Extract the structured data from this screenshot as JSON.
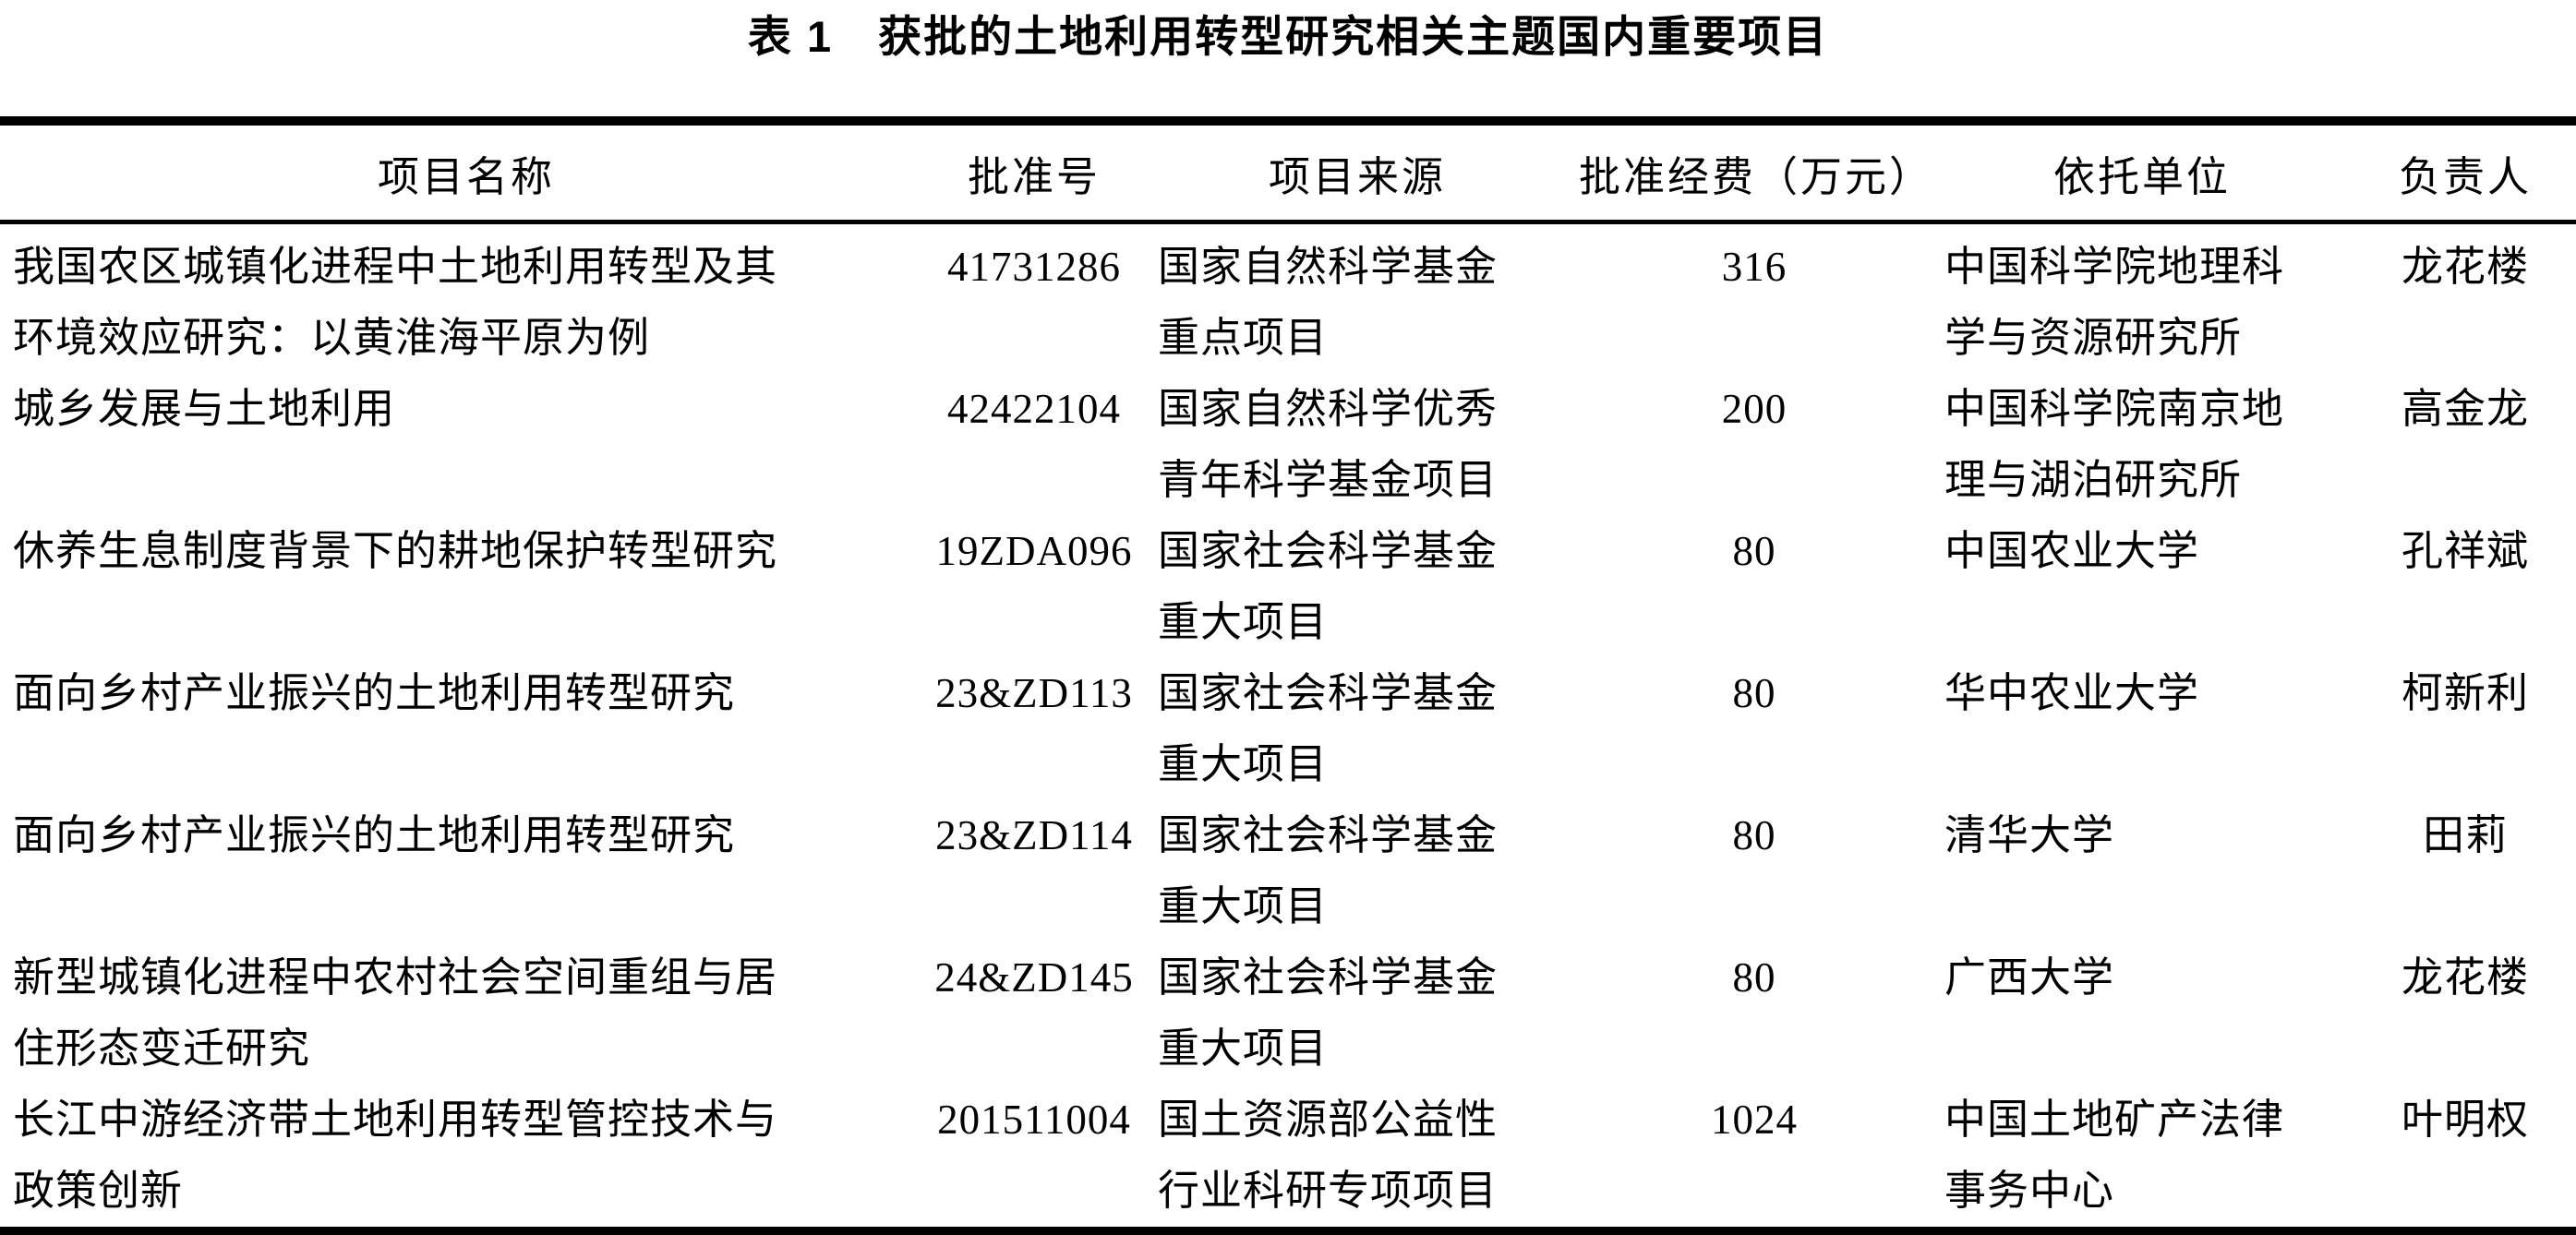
{
  "caption": "表 1　获批的土地利用转型研究相关主题国内重要项目",
  "table": {
    "columns": [
      {
        "label": "项目名称",
        "align": "left"
      },
      {
        "label": "批准号",
        "align": "center"
      },
      {
        "label": "项目来源",
        "align": "left"
      },
      {
        "label": "批准经费（万元）",
        "align": "center"
      },
      {
        "label": "依托单位",
        "align": "left"
      },
      {
        "label": "负责人",
        "align": "center"
      }
    ],
    "rows": [
      {
        "project_name": "我国农区城镇化进程中土地利用转型及其\n环境效应研究：以黄淮海平原为例",
        "approval_no": "41731286",
        "source": "国家自然科学基金\n重点项目",
        "funding_wan_yuan": "316",
        "institution": "中国科学院地理科\n学与资源研究所",
        "leader": "龙花楼"
      },
      {
        "project_name": "城乡发展与土地利用",
        "approval_no": "42422104",
        "source": "国家自然科学优秀\n青年科学基金项目",
        "funding_wan_yuan": "200",
        "institution": "中国科学院南京地\n理与湖泊研究所",
        "leader": "高金龙"
      },
      {
        "project_name": "休养生息制度背景下的耕地保护转型研究",
        "approval_no": "19ZDA096",
        "source": "国家社会科学基金\n重大项目",
        "funding_wan_yuan": "80",
        "institution": "中国农业大学",
        "leader": "孔祥斌"
      },
      {
        "project_name": "面向乡村产业振兴的土地利用转型研究",
        "approval_no": "23&ZD113",
        "source": "国家社会科学基金\n重大项目",
        "funding_wan_yuan": "80",
        "institution": "华中农业大学",
        "leader": "柯新利"
      },
      {
        "project_name": "面向乡村产业振兴的土地利用转型研究",
        "approval_no": "23&ZD114",
        "source": "国家社会科学基金\n重大项目",
        "funding_wan_yuan": "80",
        "institution": "清华大学",
        "leader": "田莉"
      },
      {
        "project_name": "新型城镇化进程中农村社会空间重组与居\n住形态变迁研究",
        "approval_no": "24&ZD145",
        "source": "国家社会科学基金\n重大项目",
        "funding_wan_yuan": "80",
        "institution": "广西大学",
        "leader": "龙花楼"
      },
      {
        "project_name": "长江中游经济带土地利用转型管控技术与\n政策创新",
        "approval_no": "201511004",
        "source": "国土资源部公益性\n行业科研专项项目",
        "funding_wan_yuan": "1024",
        "institution": "中国土地矿产法律\n事务中心",
        "leader": "叶明权"
      }
    ]
  }
}
